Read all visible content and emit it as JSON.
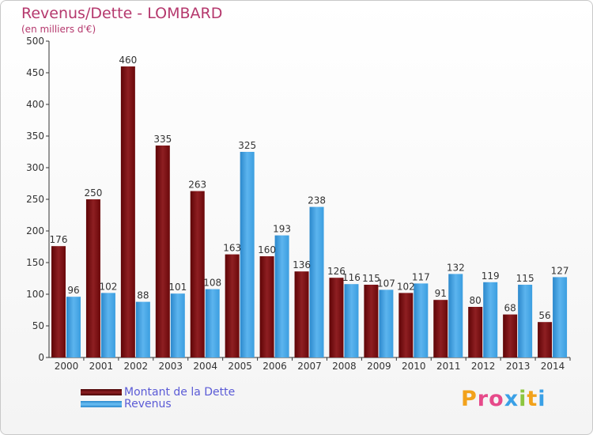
{
  "header": {
    "title": "Revenus/Dette - LOMBARD",
    "subtitle": "(en milliers d'€)"
  },
  "logo": {
    "text": "Proxiti"
  },
  "colors": {
    "debt": "#7a0f12",
    "revenue": "#3aa0e6",
    "title": "#b5386d",
    "legend_text": "#5b5bd6",
    "axis": "#333333"
  },
  "chart_data": {
    "type": "bar",
    "title": "Revenus/Dette - LOMBARD",
    "subtitle": "(en milliers d'€)",
    "xlabel": "",
    "ylabel": "",
    "ylim": [
      0,
      500
    ],
    "yticks": [
      0,
      50,
      100,
      150,
      200,
      250,
      300,
      350,
      400,
      450,
      500
    ],
    "grid": false,
    "legend_position": "bottom-left",
    "categories": [
      "2000",
      "2001",
      "2002",
      "2003",
      "2004",
      "2005",
      "2006",
      "2007",
      "2008",
      "2009",
      "2010",
      "2011",
      "2012",
      "2013",
      "2014"
    ],
    "series": [
      {
        "name": "Montant de la Dette",
        "color": "#7a0f12",
        "values": [
          176,
          250,
          460,
          335,
          263,
          163,
          160,
          136,
          126,
          115,
          102,
          91,
          80,
          68,
          56
        ]
      },
      {
        "name": "Revenus",
        "color": "#3aa0e6",
        "values": [
          96,
          102,
          88,
          101,
          108,
          325,
          193,
          238,
          116,
          107,
          117,
          132,
          119,
          115,
          127
        ]
      }
    ]
  }
}
